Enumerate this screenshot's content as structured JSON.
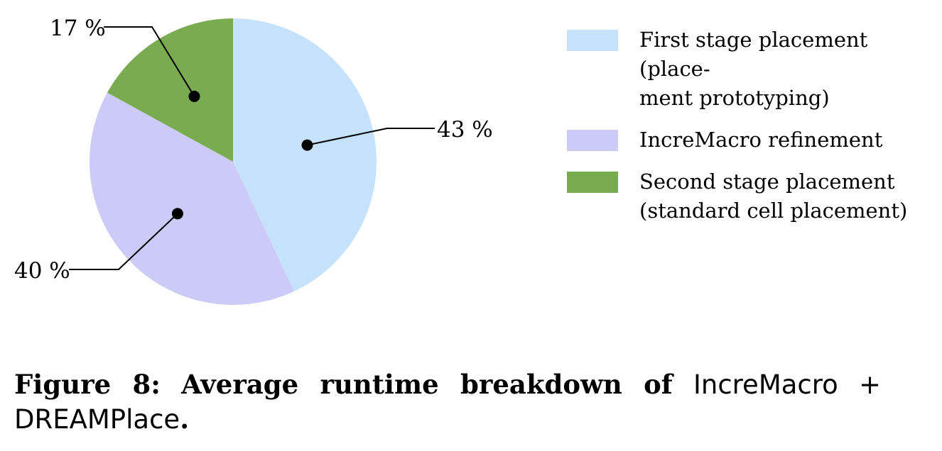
{
  "chart_data": {
    "type": "pie",
    "slices": [
      {
        "label": "First stage placement (placement prototyping)",
        "value": 43,
        "text": "43 %",
        "color": "#c6e2fb"
      },
      {
        "label": "IncreMacro refinement",
        "value": 40,
        "text": "40 %",
        "color": "#cccbf7"
      },
      {
        "label": "Second stage placement (standard cell placement)",
        "value": 17,
        "text": "17 %",
        "color": "#79ab51"
      }
    ],
    "legend_position": "right"
  },
  "legend": {
    "items": [
      {
        "text": "First stage placement (place-\nment prototyping)",
        "color": "#c6e2fb"
      },
      {
        "text": "IncreMacro refinement",
        "color": "#cccbf7"
      },
      {
        "text": "Second stage placement\n(standard cell placement)",
        "color": "#79ab51"
      }
    ]
  },
  "caption": {
    "label": "Figure 8:",
    "bold_text": "Average runtime breakdown of",
    "name1": "IncreMacro",
    "plus": "+",
    "name2": "DREAMPlace",
    "end": "."
  }
}
